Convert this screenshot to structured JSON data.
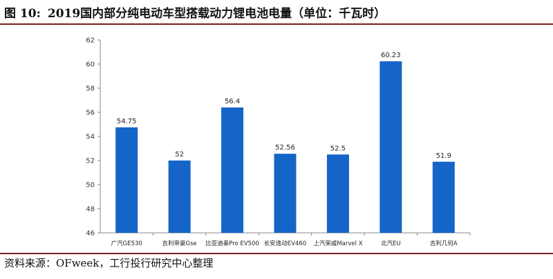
{
  "figure": {
    "label": "图 10:",
    "title": "2019国内部分纯电动车型搭载动力锂电池电量（单位：千瓦时）"
  },
  "source": "资料来源：OFweek，工行投行研究中心整理",
  "colors": {
    "bar": "#1565c9",
    "rule": "#7a1f1f"
  },
  "chart_data": {
    "type": "bar",
    "title": "",
    "xlabel": "",
    "ylabel": "",
    "ylim": [
      46,
      62
    ],
    "yticks": [
      46,
      48,
      50,
      52,
      54,
      56,
      58,
      60,
      62
    ],
    "grid": false,
    "legend": "none",
    "categories": [
      "广汽GE530",
      "吉利帝豪Gse",
      "比亚迪秦Pro EV500",
      "长安逸动EV460",
      "上汽荣威Marvel X",
      "北汽EU",
      "吉利几何A"
    ],
    "values": [
      54.75,
      52,
      56.4,
      52.56,
      52.5,
      60.23,
      51.9
    ],
    "value_labels": [
      "54.75",
      "52",
      "56.4",
      "52.56",
      "52.5",
      "60.23",
      "51.9"
    ]
  }
}
